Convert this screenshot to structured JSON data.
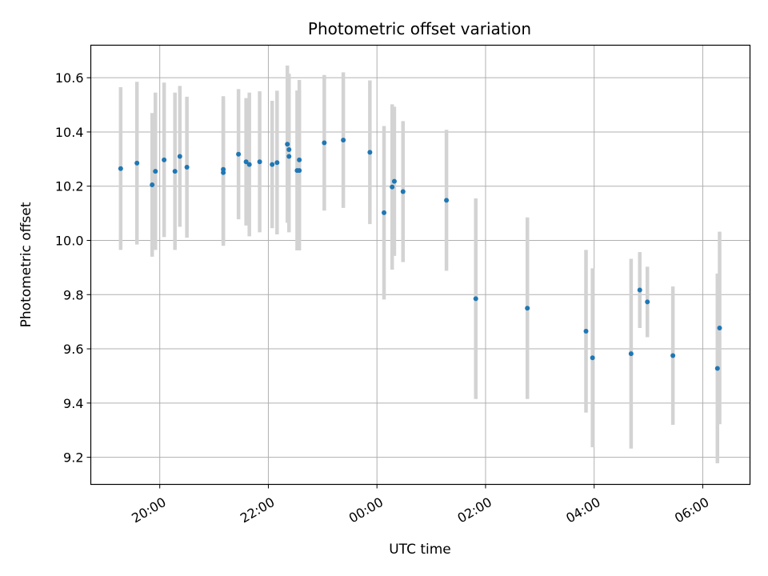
{
  "chart_data": {
    "type": "scatter",
    "title": "Photometric offset variation",
    "xlabel": "UTC time",
    "ylabel": "Photometric offset",
    "x_unit": "UTC hours (times after midnight shown as 24+)",
    "xlim": [
      18.73,
      30.87
    ],
    "ylim": [
      9.1,
      10.72
    ],
    "grid": true,
    "x_ticks": [
      {
        "value": 20,
        "label": "20:00"
      },
      {
        "value": 22,
        "label": "22:00"
      },
      {
        "value": 24,
        "label": "00:00"
      },
      {
        "value": 26,
        "label": "02:00"
      },
      {
        "value": 28,
        "label": "04:00"
      },
      {
        "value": 30,
        "label": "06:00"
      }
    ],
    "y_ticks": [
      {
        "value": 9.2,
        "label": "9.2"
      },
      {
        "value": 9.4,
        "label": "9.4"
      },
      {
        "value": 9.6,
        "label": "9.6"
      },
      {
        "value": 9.8,
        "label": "9.8"
      },
      {
        "value": 10.0,
        "label": "10.0"
      },
      {
        "value": 10.2,
        "label": "10.2"
      },
      {
        "value": 10.4,
        "label": "10.4"
      },
      {
        "value": 10.6,
        "label": "10.6"
      }
    ],
    "colors": {
      "point": "#1f77b4",
      "errorbar": "#d3d3d3",
      "grid": "#b0b0b0"
    },
    "points": [
      {
        "x": 19.28,
        "y": 10.265,
        "err": 0.3
      },
      {
        "x": 19.58,
        "y": 10.285,
        "err": 0.3
      },
      {
        "x": 19.86,
        "y": 10.205,
        "err": 0.265
      },
      {
        "x": 19.92,
        "y": 10.255,
        "err": 0.29
      },
      {
        "x": 20.08,
        "y": 10.297,
        "err": 0.285
      },
      {
        "x": 20.28,
        "y": 10.255,
        "err": 0.29
      },
      {
        "x": 20.37,
        "y": 10.31,
        "err": 0.26
      },
      {
        "x": 20.5,
        "y": 10.27,
        "err": 0.26
      },
      {
        "x": 21.17,
        "y": 10.262,
        "err": 0.27
      },
      {
        "x": 21.17,
        "y": 10.25,
        "err": 0.27
      },
      {
        "x": 21.45,
        "y": 10.318,
        "err": 0.24
      },
      {
        "x": 21.59,
        "y": 10.29,
        "err": 0.235
      },
      {
        "x": 21.65,
        "y": 10.28,
        "err": 0.265
      },
      {
        "x": 21.84,
        "y": 10.29,
        "err": 0.26
      },
      {
        "x": 22.07,
        "y": 10.28,
        "err": 0.235
      },
      {
        "x": 22.16,
        "y": 10.287,
        "err": 0.265
      },
      {
        "x": 22.35,
        "y": 10.355,
        "err": 0.29
      },
      {
        "x": 22.38,
        "y": 10.335,
        "err": 0.28
      },
      {
        "x": 22.38,
        "y": 10.31,
        "err": 0.28
      },
      {
        "x": 22.53,
        "y": 10.258,
        "err": 0.295
      },
      {
        "x": 22.57,
        "y": 10.258,
        "err": 0.295
      },
      {
        "x": 22.57,
        "y": 10.297,
        "err": 0.295
      },
      {
        "x": 23.03,
        "y": 10.36,
        "err": 0.25
      },
      {
        "x": 23.38,
        "y": 10.37,
        "err": 0.25
      },
      {
        "x": 23.87,
        "y": 10.325,
        "err": 0.265
      },
      {
        "x": 24.13,
        "y": 10.102,
        "err": 0.32
      },
      {
        "x": 24.28,
        "y": 10.197,
        "err": 0.305
      },
      {
        "x": 24.32,
        "y": 10.218,
        "err": 0.275
      },
      {
        "x": 24.48,
        "y": 10.18,
        "err": 0.26
      },
      {
        "x": 25.28,
        "y": 10.148,
        "err": 0.26
      },
      {
        "x": 25.82,
        "y": 9.785,
        "err": 0.37
      },
      {
        "x": 26.77,
        "y": 9.75,
        "err": 0.335
      },
      {
        "x": 27.85,
        "y": 9.665,
        "err": 0.3
      },
      {
        "x": 27.97,
        "y": 9.567,
        "err": 0.33
      },
      {
        "x": 28.68,
        "y": 9.582,
        "err": 0.35
      },
      {
        "x": 28.84,
        "y": 9.817,
        "err": 0.14
      },
      {
        "x": 28.98,
        "y": 9.773,
        "err": 0.13
      },
      {
        "x": 29.45,
        "y": 9.575,
        "err": 0.255
      },
      {
        "x": 30.27,
        "y": 9.528,
        "err": 0.35
      },
      {
        "x": 30.31,
        "y": 9.677,
        "err": 0.355
      }
    ]
  }
}
